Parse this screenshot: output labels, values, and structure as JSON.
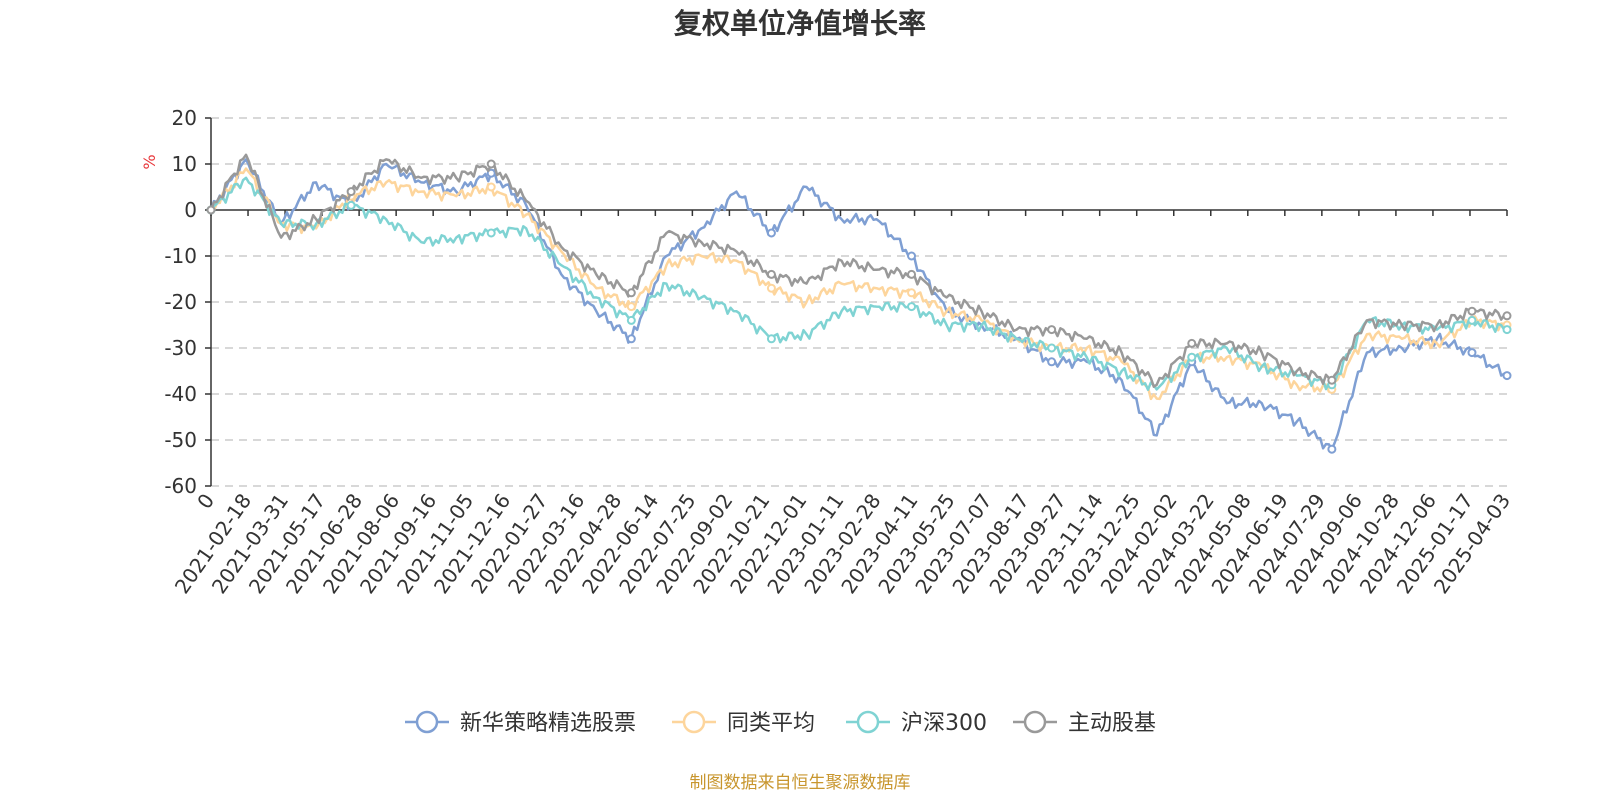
{
  "chart_data": {
    "type": "line",
    "title": "复权单位净值增长率",
    "ylabel": "%",
    "ylabel_color": "#e8373b",
    "ylim": [
      -60,
      20
    ],
    "yticks": [
      "20",
      "10",
      "0",
      "-10",
      "-20",
      "-30",
      "-40",
      "-50",
      "-60"
    ],
    "grid": true,
    "legend_position": "bottom-center",
    "xticks": [
      "0",
      "2021-02-18",
      "2021-03-31",
      "2021-05-17",
      "2021-06-28",
      "2021-08-06",
      "2021-09-16",
      "2021-11-05",
      "2021-12-16",
      "2022-01-27",
      "2022-03-16",
      "2022-04-28",
      "2022-06-14",
      "2022-07-25",
      "2022-09-02",
      "2022-10-21",
      "2022-12-01",
      "2023-01-11",
      "2023-02-28",
      "2023-04-11",
      "2023-05-25",
      "2023-07-07",
      "2023-08-17",
      "2023-09-27",
      "2023-11-14",
      "2023-12-25",
      "2024-02-02",
      "2024-03-22",
      "2024-05-08",
      "2024-06-19",
      "2024-07-29",
      "2024-09-06",
      "2024-10-28",
      "2024-12-06",
      "2025-01-17",
      "2025-04-03"
    ],
    "series": [
      {
        "name": "新华策略精选股票",
        "color": "#7f9fd3",
        "values": [
          0,
          11,
          -3,
          6,
          1,
          10,
          6,
          4,
          8,
          1,
          -14,
          -22,
          -28,
          -10,
          -4,
          4,
          -5,
          5,
          -2,
          -2,
          -10,
          -22,
          -25,
          -28,
          -33,
          -33,
          -37,
          -49,
          -33,
          -42,
          -42,
          -46,
          -52,
          -31,
          -30,
          -28,
          -31,
          -36
        ]
      },
      {
        "name": "同类平均",
        "color": "#fdd59c",
        "values": [
          0,
          9,
          -3,
          -4,
          3,
          6,
          4,
          3,
          5,
          -1,
          -9,
          -17,
          -21,
          -12,
          -10,
          -11,
          -17,
          -20,
          -16,
          -17,
          -18,
          -22,
          -24,
          -28,
          -30,
          -30,
          -33,
          -41,
          -32,
          -32,
          -34,
          -38,
          -39,
          -27,
          -28,
          -29,
          -24,
          -25
        ]
      },
      {
        "name": "沪深300",
        "color": "#7fd3d3",
        "values": [
          0,
          7,
          -3,
          -3,
          1,
          -2,
          -7,
          -6,
          -5,
          -4,
          -12,
          -19,
          -24,
          -16,
          -19,
          -22,
          -28,
          -27,
          -22,
          -21,
          -21,
          -25,
          -25,
          -28,
          -30,
          -32,
          -35,
          -39,
          -32,
          -30,
          -34,
          -36,
          -38,
          -24,
          -25,
          -26,
          -24,
          -26
        ]
      },
      {
        "name": "主动股基",
        "color": "#999999",
        "values": [
          0,
          12,
          -6,
          -2,
          4,
          11,
          7,
          7,
          10,
          2,
          -8,
          -14,
          -18,
          -5,
          -7,
          -9,
          -14,
          -16,
          -11,
          -13,
          -14,
          -19,
          -22,
          -26,
          -26,
          -28,
          -31,
          -38,
          -29,
          -29,
          -31,
          -35,
          -37,
          -24,
          -25,
          -25,
          -22,
          -23
        ]
      }
    ]
  },
  "source_note": "制图数据来自恒生聚源数据库",
  "source_color": "#c8962e"
}
